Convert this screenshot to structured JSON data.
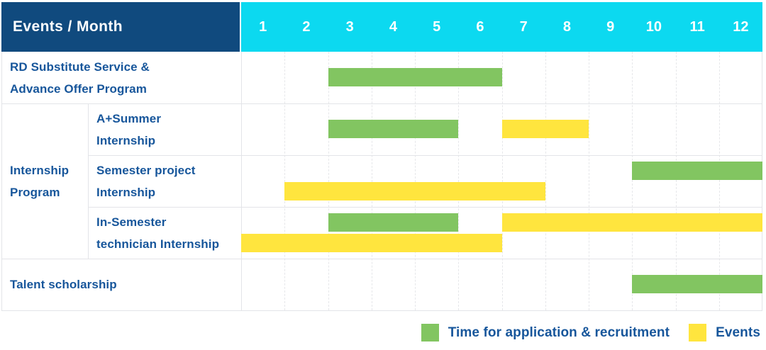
{
  "header": {
    "label": "Events / Month"
  },
  "colors": {
    "header_bg": "#104a7e",
    "months_bg": "#0cd9f0",
    "header_text": "#ffffff",
    "label_text": "#17569b",
    "application": "#82c561",
    "events": "#ffe53e",
    "grid": "#e3e4e8"
  },
  "chart_data": {
    "type": "table",
    "subtype": "gantt",
    "row_axis_label": "Events / Month",
    "x": {
      "unit": "month",
      "ticks": [
        "1",
        "2",
        "3",
        "4",
        "5",
        "6",
        "7",
        "8",
        "9",
        "10",
        "11",
        "12"
      ],
      "range": [
        1,
        12
      ]
    },
    "group_label": "Internship\nProgram",
    "rows": [
      {
        "label": "RD Substitute Service &\nAdvance Offer Program",
        "group": null,
        "bars": [
          {
            "type": "application",
            "start": 3,
            "end": 6,
            "lane": "center"
          }
        ]
      },
      {
        "label": "A+Summer\nInternship",
        "group": "Internship Program",
        "bars": [
          {
            "type": "application",
            "start": 3,
            "end": 5,
            "lane": "center"
          },
          {
            "type": "events",
            "start": 7,
            "end": 8,
            "lane": "center"
          }
        ]
      },
      {
        "label": "Semester project\nInternship",
        "group": "Internship Program",
        "bars": [
          {
            "type": "application",
            "start": 10,
            "end": 12,
            "lane": "top"
          },
          {
            "type": "events",
            "start": 2,
            "end": 7,
            "lane": "bottom"
          }
        ]
      },
      {
        "label": "In-Semester\ntechnician Internship",
        "group": "Internship Program",
        "bars": [
          {
            "type": "application",
            "start": 3,
            "end": 5,
            "lane": "top"
          },
          {
            "type": "events",
            "start": 7,
            "end": 12,
            "lane": "top"
          },
          {
            "type": "events",
            "start": 1,
            "end": 6,
            "lane": "bottom"
          }
        ]
      },
      {
        "label": "Talent scholarship",
        "group": null,
        "bars": [
          {
            "type": "application",
            "start": 10,
            "end": 12,
            "lane": "center"
          }
        ]
      }
    ],
    "legend": [
      {
        "type": "application",
        "label": "Time for application & recruitment",
        "color": "#82c561"
      },
      {
        "type": "events",
        "label": "Events",
        "color": "#ffe53e"
      }
    ],
    "legend_position": "bottom-right",
    "grid": true
  }
}
